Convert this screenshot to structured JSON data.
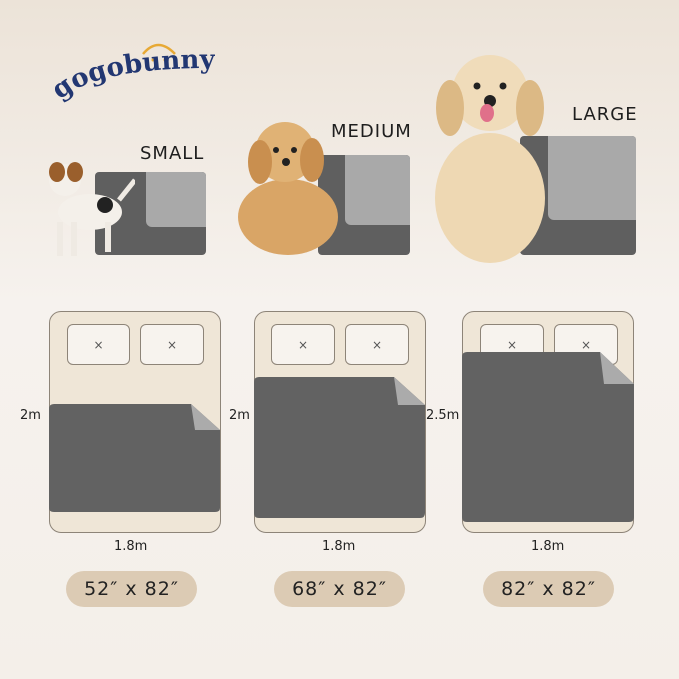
{
  "brand": {
    "logo_text": "gogobunny",
    "colors": {
      "navy": "#223772",
      "accent": "#e7a935"
    }
  },
  "products": [
    {
      "size": "SMALL",
      "bed_height": "2m",
      "bed_width": "1.8m",
      "dimensions": "52″ x 82″"
    },
    {
      "size": "MEDIUM",
      "bed_height": "2m",
      "bed_width": "1.8m",
      "dimensions": "68″ x 82″"
    },
    {
      "size": "LARGE",
      "bed_height": "2.5m",
      "bed_width": "1.8m",
      "dimensions": "82″ x 82″"
    }
  ],
  "pillow_mark": "×"
}
